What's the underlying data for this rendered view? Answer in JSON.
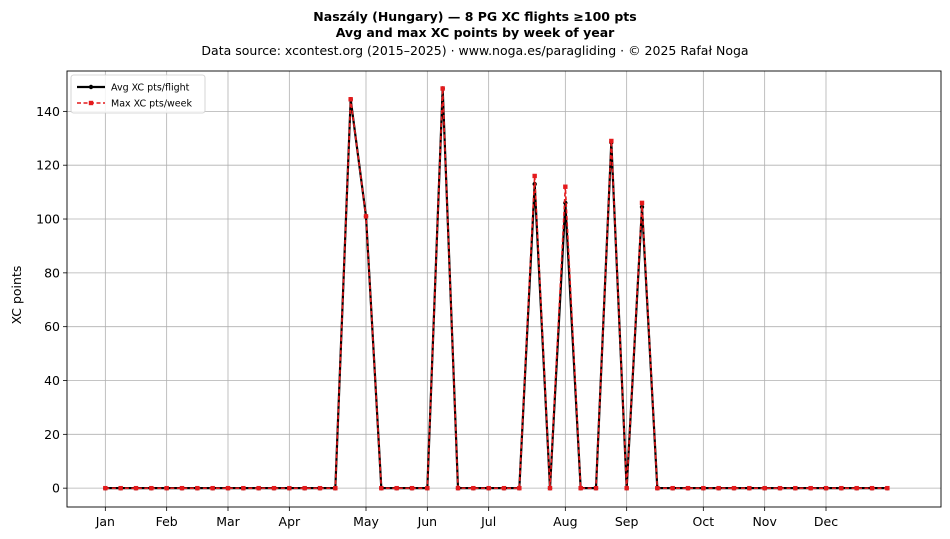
{
  "chart_data": {
    "type": "line",
    "title": "Naszály (Hungary)  —  8 PG XC flights ≥100 pts",
    "subtitle": "Avg and max XC points by week of year",
    "source_note": "Data source: xcontest.org (2015–2025)  ·  www.noga.es/paragliding  ·  © 2025 Rafał Noga",
    "xlabel": "",
    "ylabel": "XC points",
    "ylim": [
      -7,
      155
    ],
    "xlim": [
      -2.5,
      54.5
    ],
    "yticks": [
      0,
      20,
      40,
      60,
      80,
      100,
      120,
      140
    ],
    "xticks": [
      {
        "label": "Jan",
        "week": 0
      },
      {
        "label": "Feb",
        "week": 4
      },
      {
        "label": "Mar",
        "week": 8
      },
      {
        "label": "Apr",
        "week": 12
      },
      {
        "label": "May",
        "week": 17
      },
      {
        "label": "Jun",
        "week": 21
      },
      {
        "label": "Jul",
        "week": 25
      },
      {
        "label": "Aug",
        "week": 30
      },
      {
        "label": "Sep",
        "week": 34
      },
      {
        "label": "Oct",
        "week": 39
      },
      {
        "label": "Nov",
        "week": 43
      },
      {
        "label": "Dec",
        "week": 47
      }
    ],
    "grid": true,
    "legend_position": "top-left",
    "x": [
      0,
      1,
      2,
      3,
      4,
      5,
      6,
      7,
      8,
      9,
      10,
      11,
      12,
      13,
      14,
      15,
      16,
      17,
      18,
      19,
      20,
      21,
      22,
      23,
      24,
      25,
      26,
      27,
      28,
      29,
      30,
      31,
      32,
      33,
      34,
      35,
      36,
      37,
      38,
      39,
      40,
      41,
      42,
      43,
      44,
      45,
      46,
      47,
      48,
      49,
      50,
      51
    ],
    "series": [
      {
        "name": "Avg XC pts/flight",
        "color": "#000000",
        "style": "solid-circle",
        "values": [
          0,
          0,
          0,
          0,
          0,
          0,
          0,
          0,
          0,
          0,
          0,
          0,
          0,
          0,
          0,
          0,
          144.5,
          101,
          0,
          0,
          0,
          0,
          148.5,
          0,
          0,
          0,
          0,
          0,
          113,
          0,
          106,
          0,
          0,
          128.5,
          0,
          104.5,
          0,
          0,
          0,
          0,
          0,
          0,
          0,
          0,
          0,
          0,
          0,
          0,
          0,
          0,
          0,
          0
        ]
      },
      {
        "name": "Max XC pts/week",
        "color": "#e41a1c",
        "style": "dashed-square",
        "values": [
          0,
          0,
          0,
          0,
          0,
          0,
          0,
          0,
          0,
          0,
          0,
          0,
          0,
          0,
          0,
          0,
          144.5,
          101,
          0,
          0,
          0,
          0,
          148.5,
          0,
          0,
          0,
          0,
          0,
          116,
          0,
          112,
          0,
          0,
          129,
          0,
          106,
          0,
          0,
          0,
          0,
          0,
          0,
          0,
          0,
          0,
          0,
          0,
          0,
          0,
          0,
          0,
          0
        ]
      }
    ]
  }
}
